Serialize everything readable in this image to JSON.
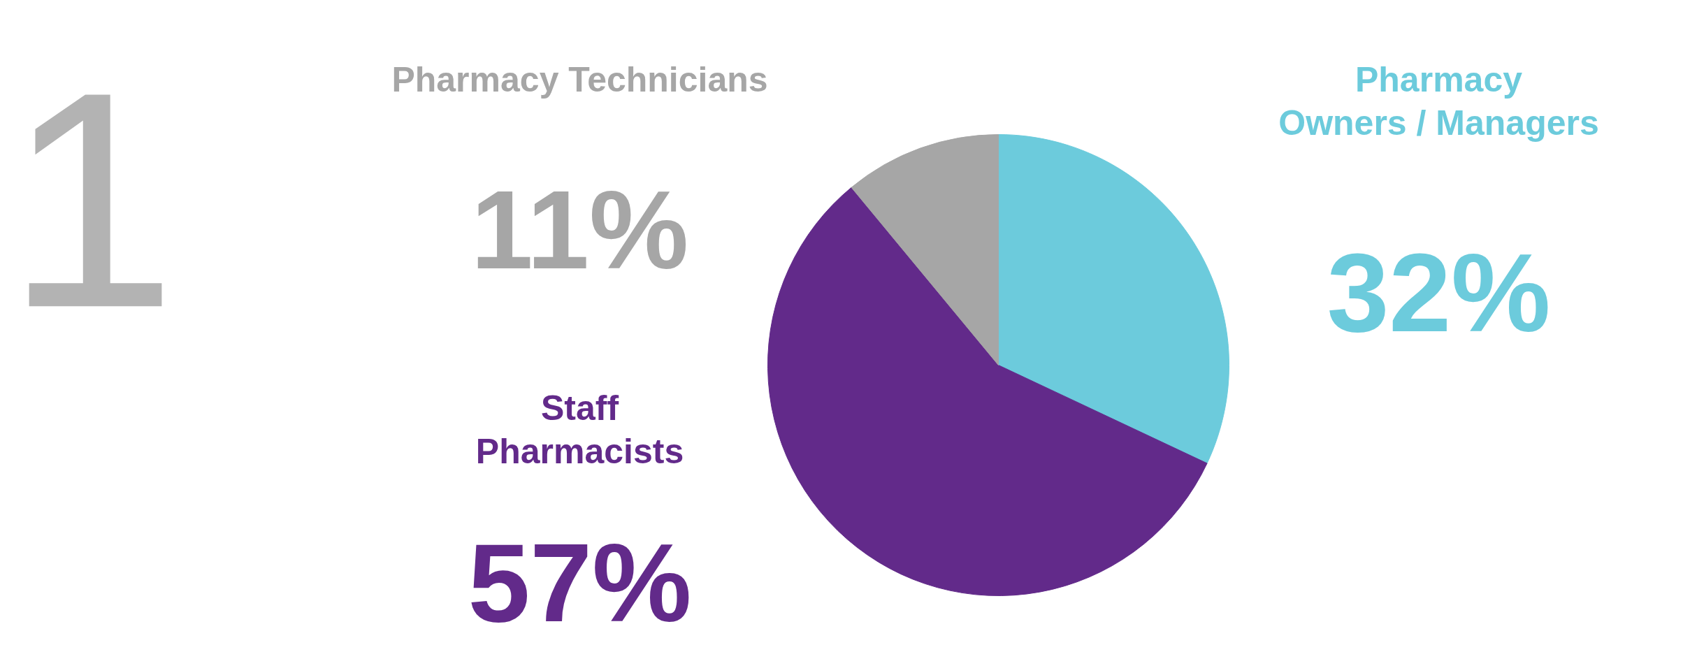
{
  "chart_data": {
    "type": "pie",
    "categories": [
      "Pharmacy Owners / Managers",
      "Staff Pharmacists",
      "Pharmacy Technicians"
    ],
    "values": [
      32,
      57,
      11
    ],
    "colors": [
      "#6ccbdc",
      "#622a8a",
      "#a6a6a6"
    ],
    "value_labels": [
      "32%",
      "57%",
      "11%"
    ],
    "annotations": [
      "1"
    ]
  }
}
